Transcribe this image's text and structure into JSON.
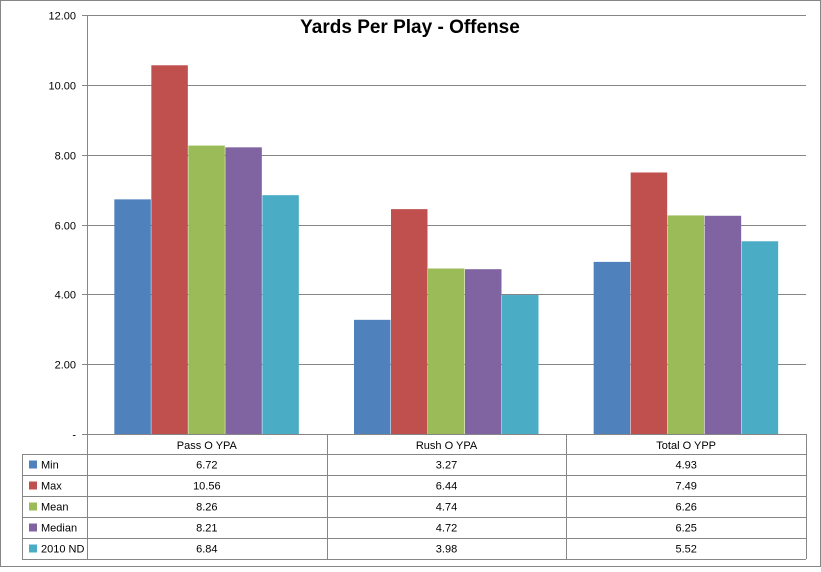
{
  "chart_data": {
    "type": "bar",
    "title": "Yards Per Play - Offense",
    "xlabel": "",
    "ylabel": "",
    "ylim": [
      0,
      12
    ],
    "yticks": [
      {
        "value": 12,
        "label": "12.00"
      },
      {
        "value": 10,
        "label": "10.00"
      },
      {
        "value": 8,
        "label": "8.00"
      },
      {
        "value": 6,
        "label": "6.00"
      },
      {
        "value": 4,
        "label": "4.00"
      },
      {
        "value": 2,
        "label": "2.00"
      },
      {
        "value": 0,
        "label": "-"
      }
    ],
    "grid": true,
    "legend": "data-table",
    "categories": [
      "Pass O YPA",
      "Rush O YPA",
      "Total O YPP"
    ],
    "series": [
      {
        "name": "Min",
        "color": "#4F81BD",
        "values": [
          6.72,
          3.27,
          4.93
        ],
        "labels": [
          "6.72",
          "3.27",
          "4.93"
        ]
      },
      {
        "name": "Max",
        "color": "#C0504D",
        "values": [
          10.56,
          6.44,
          7.49
        ],
        "labels": [
          "10.56",
          "6.44",
          "7.49"
        ]
      },
      {
        "name": "Mean",
        "color": "#9BBB59",
        "values": [
          8.26,
          4.74,
          6.26
        ],
        "labels": [
          "8.26",
          "4.74",
          "6.26"
        ]
      },
      {
        "name": "Median",
        "color": "#8064A2",
        "values": [
          8.21,
          4.72,
          6.25
        ],
        "labels": [
          "8.21",
          "4.72",
          "6.25"
        ]
      },
      {
        "name": "2010 ND",
        "color": "#4BACC6",
        "values": [
          6.84,
          3.98,
          5.52
        ],
        "labels": [
          "6.84",
          "3.98",
          "5.52"
        ]
      }
    ]
  }
}
